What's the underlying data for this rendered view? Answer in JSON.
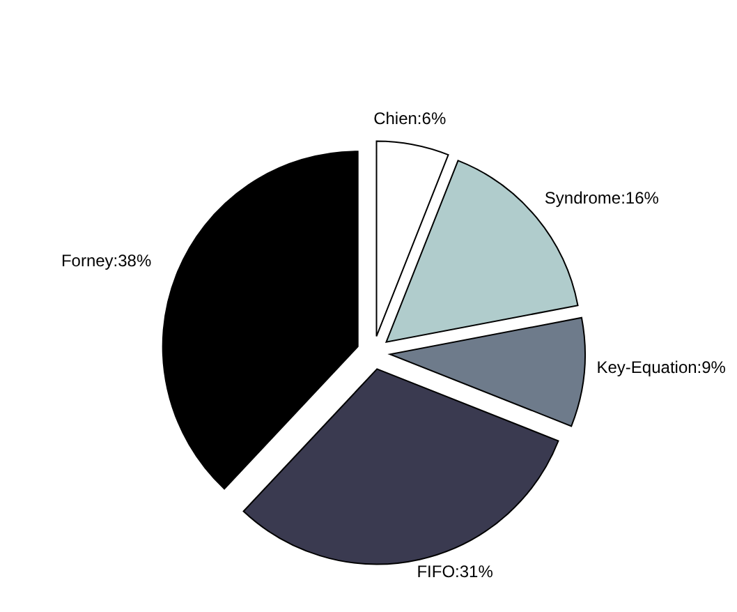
{
  "chart_data": {
    "type": "pie",
    "categories": [
      "Chien",
      "Syndrome",
      "Key-Equation",
      "FIFO",
      "Forney"
    ],
    "values": [
      6,
      16,
      9,
      31,
      38
    ],
    "value_labels": [
      "6%",
      "16%",
      "9%",
      "31%",
      "38%"
    ],
    "colors": [
      "#ffffff",
      "#b0cccc",
      "#6e7b8b",
      "#3a3a50",
      "#000000"
    ]
  }
}
